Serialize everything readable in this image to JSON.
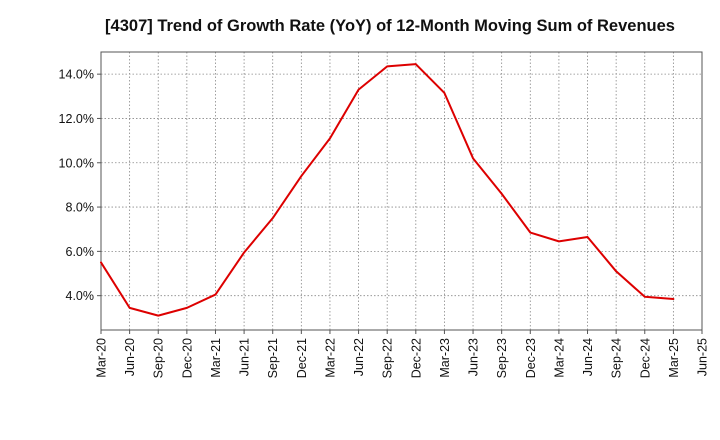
{
  "chart_data": {
    "type": "line",
    "title": "[4307]  Trend of Growth Rate (YoY) of 12-Month Moving Sum of Revenues",
    "xlabel": "",
    "ylabel": "",
    "x_ticks": [
      "Mar-20",
      "Jun-20",
      "Sep-20",
      "Dec-20",
      "Mar-21",
      "Jun-21",
      "Sep-21",
      "Dec-21",
      "Mar-22",
      "Jun-22",
      "Sep-22",
      "Dec-22",
      "Mar-23",
      "Jun-23",
      "Sep-23",
      "Dec-23",
      "Mar-24",
      "Jun-24",
      "Sep-24",
      "Dec-24",
      "Mar-25",
      "Jun-25"
    ],
    "y_ticks": [
      {
        "value": 4,
        "label": "4.0%"
      },
      {
        "value": 6,
        "label": "6.0%"
      },
      {
        "value": 8,
        "label": "8.0%"
      },
      {
        "value": 10,
        "label": "10.0%"
      },
      {
        "value": 12,
        "label": "12.0%"
      },
      {
        "value": 14,
        "label": "14.0%"
      }
    ],
    "ylim": [
      2.45,
      15.0
    ],
    "grid": true,
    "legend": "none",
    "series": [
      {
        "color": "#dd0000",
        "x": [
          "Mar-20",
          "Jun-20",
          "Sep-20",
          "Dec-20",
          "Mar-21",
          "Jun-21",
          "Sep-21",
          "Dec-21",
          "Mar-22",
          "Jun-22",
          "Sep-22",
          "Dec-22",
          "Mar-23",
          "Jun-23",
          "Sep-23",
          "Dec-23",
          "Mar-24",
          "Jun-24",
          "Sep-24",
          "Dec-24",
          "Mar-25"
        ],
        "values": [
          5.5,
          3.45,
          3.1,
          3.45,
          4.05,
          5.95,
          7.5,
          9.4,
          11.1,
          13.3,
          14.35,
          14.45,
          13.15,
          10.2,
          8.6,
          6.85,
          6.45,
          6.65,
          5.1,
          3.95,
          3.85
        ]
      }
    ]
  }
}
